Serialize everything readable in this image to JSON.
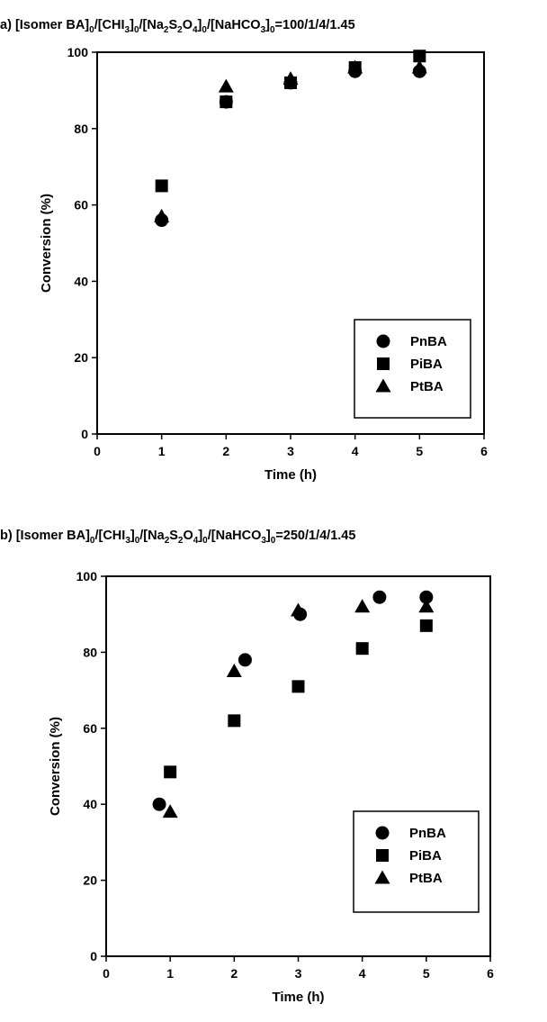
{
  "chart_data": [
    {
      "type": "scatter",
      "panel_label": "a)",
      "title_parts": [
        "[Isomer BA]",
        "0",
        "/[CHI",
        "3",
        "]",
        "0",
        "/[Na",
        "2",
        "S",
        "2",
        "O",
        "4",
        "]",
        "0",
        "/[NaHCO",
        "3",
        "]",
        "0",
        "=100/1/4/1.45"
      ],
      "xlabel": "Time (h)",
      "ylabel": "Conversion (%)",
      "xlim": [
        0,
        6
      ],
      "ylim": [
        0,
        100
      ],
      "xticks": [
        "0",
        "1",
        "2",
        "3",
        "4",
        "5",
        "6"
      ],
      "yticks": [
        "0",
        "20",
        "40",
        "60",
        "80",
        "100"
      ],
      "grid": false,
      "legend_position": "bottom-right",
      "series": [
        {
          "name": "PnBA",
          "marker": "circle",
          "x": [
            1,
            2,
            3,
            4,
            5
          ],
          "y": [
            56,
            87,
            92,
            95,
            95
          ]
        },
        {
          "name": "PiBA",
          "marker": "square",
          "x": [
            1,
            2,
            3,
            4,
            5
          ],
          "y": [
            65,
            87,
            92,
            96,
            99
          ]
        },
        {
          "name": "PtBA",
          "marker": "triangle",
          "x": [
            1,
            2,
            3,
            4,
            5
          ],
          "y": [
            57,
            91,
            93,
            96,
            96
          ]
        }
      ]
    },
    {
      "type": "scatter",
      "panel_label": "b)",
      "title_parts": [
        "[Isomer BA]",
        "0",
        "/[CHI",
        "3",
        "]",
        "0",
        "/[Na",
        "2",
        "S",
        "2",
        "O",
        "4",
        "]",
        "0",
        "/[NaHCO",
        "3",
        "]",
        "0",
        "=250/1/4/1.45"
      ],
      "xlabel": "Time (h)",
      "ylabel": "Conversion (%)",
      "xlim": [
        0,
        6
      ],
      "ylim": [
        0,
        100
      ],
      "xticks": [
        "0",
        "1",
        "2",
        "3",
        "4",
        "5",
        "6"
      ],
      "yticks": [
        "0",
        "20",
        "40",
        "60",
        "80",
        "100"
      ],
      "grid": false,
      "legend_position": "bottom-right",
      "series": [
        {
          "name": "PnBA",
          "marker": "circle",
          "x": [
            0.83,
            2.17,
            3.03,
            4.27,
            5.0
          ],
          "y": [
            40,
            78,
            90,
            94.5,
            94.5
          ]
        },
        {
          "name": "PiBA",
          "marker": "square",
          "x": [
            1,
            2,
            3,
            4,
            5
          ],
          "y": [
            48.5,
            62,
            71,
            81,
            87
          ]
        },
        {
          "name": "PtBA",
          "marker": "triangle",
          "x": [
            1,
            2,
            3,
            4,
            5
          ],
          "y": [
            38,
            75,
            91,
            92,
            92
          ]
        }
      ]
    }
  ]
}
